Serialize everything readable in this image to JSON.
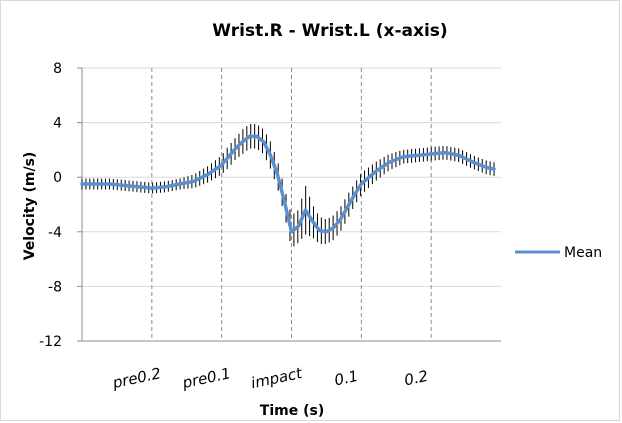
{
  "chart_data": {
    "type": "line",
    "title": "Wrist.R - Wrist.L (x-axis)",
    "xlabel": "Time (s)",
    "ylabel": "Velocity (m/s)",
    "ylim": [
      -12,
      8
    ],
    "yticks": [
      8,
      4,
      0,
      -4,
      -8,
      -12
    ],
    "xlim": [
      -0.3,
      0.3
    ],
    "xticks": [
      {
        "value": -0.2,
        "label": "pre0.2"
      },
      {
        "value": -0.1,
        "label": "pre0.1"
      },
      {
        "value": 0.0,
        "label": "impact"
      },
      {
        "value": 0.1,
        "label": "0.1"
      },
      {
        "value": 0.2,
        "label": "0.2"
      }
    ],
    "grid": {
      "y": true,
      "x": "dashed-vertical"
    },
    "legend": {
      "position": "right",
      "entries": [
        "Mean"
      ]
    },
    "series": [
      {
        "name": "Mean",
        "color": "#5b8fcd",
        "x": [
          -0.3,
          -0.28,
          -0.26,
          -0.24,
          -0.22,
          -0.2,
          -0.18,
          -0.16,
          -0.14,
          -0.12,
          -0.1,
          -0.09,
          -0.08,
          -0.07,
          -0.06,
          -0.05,
          -0.04,
          -0.03,
          -0.02,
          -0.01,
          0.0,
          0.01,
          0.02,
          0.03,
          0.04,
          0.05,
          0.06,
          0.07,
          0.08,
          0.09,
          0.1,
          0.12,
          0.14,
          0.16,
          0.18,
          0.2,
          0.22,
          0.24,
          0.26,
          0.28,
          0.29
        ],
        "values": [
          -0.5,
          -0.5,
          -0.5,
          -0.6,
          -0.7,
          -0.8,
          -0.7,
          -0.5,
          -0.3,
          0.2,
          0.9,
          1.5,
          2.1,
          2.6,
          3.0,
          3.0,
          2.6,
          1.6,
          0.2,
          -1.8,
          -4.0,
          -3.6,
          -2.4,
          -3.2,
          -3.9,
          -4.0,
          -3.7,
          -3.1,
          -2.2,
          -1.3,
          -0.5,
          0.4,
          1.1,
          1.5,
          1.6,
          1.7,
          1.8,
          1.6,
          1.1,
          0.7,
          0.6
        ],
        "error": [
          0.4,
          0.4,
          0.4,
          0.4,
          0.4,
          0.4,
          0.4,
          0.4,
          0.5,
          0.6,
          0.7,
          0.8,
          0.8,
          0.9,
          0.9,
          0.9,
          0.9,
          1.0,
          1.0,
          1.0,
          1.2,
          1.2,
          1.8,
          1.2,
          1.0,
          0.9,
          0.9,
          0.9,
          0.9,
          0.8,
          0.8,
          0.7,
          0.6,
          0.5,
          0.5,
          0.5,
          0.5,
          0.5,
          0.5,
          0.5,
          0.5
        ]
      }
    ]
  }
}
